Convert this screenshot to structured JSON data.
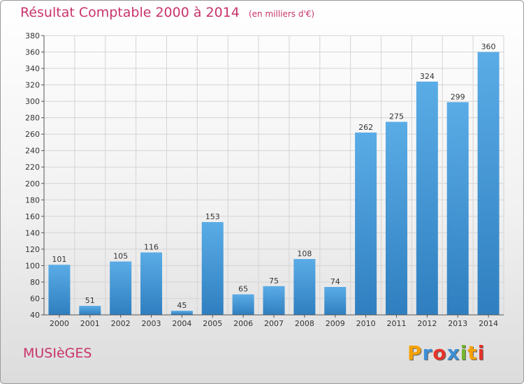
{
  "header": {
    "title": "Résultat Comptable 2000 à 2014",
    "subtitle": "(en milliers d'€)"
  },
  "footer": {
    "commune": "MUSIèGES",
    "logo_letters": [
      "P",
      "r",
      "o",
      "x",
      "i",
      "t",
      "i"
    ],
    "logo_colors": [
      "#f5a100",
      "#3c8fd6",
      "#e6332a",
      "#3c8fd6",
      "#74b62e",
      "#f5a100",
      "#e6332a"
    ]
  },
  "chart_data": {
    "type": "bar",
    "title": "Résultat Comptable 2000 à 2014",
    "subtitle": "(en milliers d'€)",
    "categories": [
      "2000",
      "2001",
      "2002",
      "2003",
      "2004",
      "2005",
      "2006",
      "2007",
      "2008",
      "2009",
      "2010",
      "2011",
      "2012",
      "2013",
      "2014"
    ],
    "values": [
      101,
      51,
      105,
      116,
      45,
      153,
      65,
      75,
      108,
      74,
      262,
      275,
      324,
      299,
      360
    ],
    "ylim": [
      40,
      380
    ],
    "yticks": [
      40,
      60,
      80,
      100,
      120,
      140,
      160,
      180,
      200,
      220,
      240,
      260,
      280,
      300,
      320,
      340,
      360,
      380
    ],
    "grid": true,
    "bar_color_top": "#5aace6",
    "bar_color_bottom": "#2f7fc0"
  }
}
